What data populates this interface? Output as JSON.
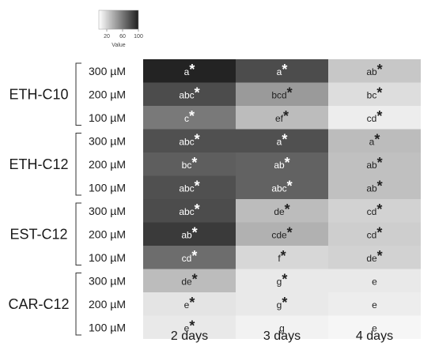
{
  "chart_data": {
    "type": "heatmap",
    "legend": {
      "ticks": [
        20,
        60,
        100
      ],
      "title": "Value",
      "range": [
        0,
        100
      ],
      "low_color": "#ffffff",
      "high_color": "#1f1f1f"
    },
    "columns": [
      "2 days",
      "3 days",
      "4 days"
    ],
    "groups": [
      {
        "name": "ETH-C10",
        "rows": [
          "300 µM",
          "200 µM",
          "100 µM"
        ]
      },
      {
        "name": "ETH-C12",
        "rows": [
          "300 µM",
          "200 µM",
          "100 µM"
        ]
      },
      {
        "name": "EST-C12",
        "rows": [
          "300 µM",
          "200 µM",
          "100 µM"
        ]
      },
      {
        "name": "CAR-C12",
        "rows": [
          "300 µM",
          "200 µM",
          "100 µM"
        ]
      }
    ],
    "values": [
      [
        98,
        80,
        25
      ],
      [
        80,
        45,
        15
      ],
      [
        60,
        30,
        8
      ],
      [
        78,
        78,
        30
      ],
      [
        72,
        70,
        28
      ],
      [
        78,
        70,
        28
      ],
      [
        80,
        30,
        20
      ],
      [
        88,
        35,
        22
      ],
      [
        65,
        18,
        20
      ],
      [
        30,
        10,
        10
      ],
      [
        12,
        10,
        8
      ],
      [
        10,
        6,
        4
      ]
    ],
    "labels": [
      [
        {
          "text": "a",
          "star": true
        },
        {
          "text": "a",
          "star": true
        },
        {
          "text": "ab",
          "star": true
        }
      ],
      [
        {
          "text": "abc",
          "star": true
        },
        {
          "text": "bcd",
          "star": true
        },
        {
          "text": "bc",
          "star": true
        }
      ],
      [
        {
          "text": "c",
          "star": true
        },
        {
          "text": "ef",
          "star": true
        },
        {
          "text": "cd",
          "star": true
        }
      ],
      [
        {
          "text": "abc",
          "star": true
        },
        {
          "text": "a",
          "star": true
        },
        {
          "text": "a",
          "star": true
        }
      ],
      [
        {
          "text": "bc",
          "star": true
        },
        {
          "text": "ab",
          "star": true
        },
        {
          "text": "ab",
          "star": true
        }
      ],
      [
        {
          "text": "abc",
          "star": true
        },
        {
          "text": "abc",
          "star": true
        },
        {
          "text": "ab",
          "star": true
        }
      ],
      [
        {
          "text": "abc",
          "star": true
        },
        {
          "text": "de",
          "star": true
        },
        {
          "text": "cd",
          "star": true
        }
      ],
      [
        {
          "text": "ab",
          "star": true
        },
        {
          "text": "cde",
          "star": true
        },
        {
          "text": "cd",
          "star": true
        }
      ],
      [
        {
          "text": "cd",
          "star": true
        },
        {
          "text": "f",
          "star": true
        },
        {
          "text": "de",
          "star": true
        }
      ],
      [
        {
          "text": "de",
          "star": true
        },
        {
          "text": "g",
          "star": true
        },
        {
          "text": "e",
          "star": false
        }
      ],
      [
        {
          "text": "e",
          "star": true
        },
        {
          "text": "g",
          "star": true
        },
        {
          "text": "e",
          "star": false
        }
      ],
      [
        {
          "text": "e",
          "star": true
        },
        {
          "text": "g",
          "star": false
        },
        {
          "text": "e",
          "star": false
        }
      ]
    ]
  }
}
